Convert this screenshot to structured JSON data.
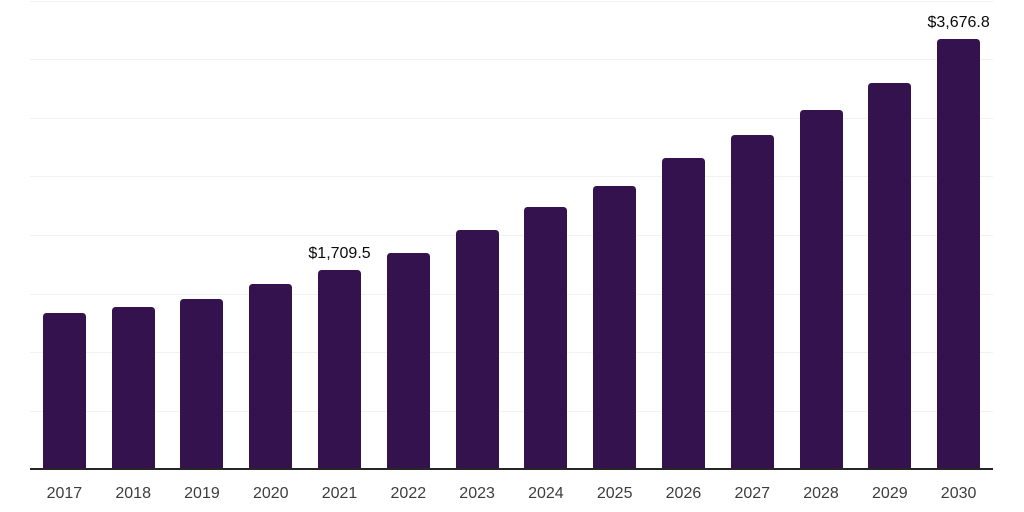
{
  "chart_data": {
    "type": "bar",
    "title": "",
    "xlabel": "",
    "ylabel": "",
    "categories": [
      "2017",
      "2018",
      "2019",
      "2020",
      "2021",
      "2022",
      "2023",
      "2024",
      "2025",
      "2026",
      "2027",
      "2028",
      "2029",
      "2030"
    ],
    "values": [
      1340,
      1390,
      1460,
      1585,
      1709.5,
      1850,
      2045,
      2240,
      2425,
      2660,
      2860,
      3070,
      3300,
      3676.8
    ],
    "value_labels": [
      {
        "index": 4,
        "text": "$1,709.5"
      },
      {
        "index": 13,
        "text": "$3,676.8"
      }
    ],
    "ylim": [
      0,
      4000
    ],
    "gridline_step": 500,
    "grid": true,
    "legend_position": "none",
    "y_axis_tick_labels_visible": false,
    "colors": {
      "bar": "#33124E",
      "gridline": "#F2F2F2",
      "axis_line": "#262626",
      "tick_label": "#3D3D3D",
      "value_label": "#0A0A0A",
      "background": "#FFFFFF"
    }
  }
}
